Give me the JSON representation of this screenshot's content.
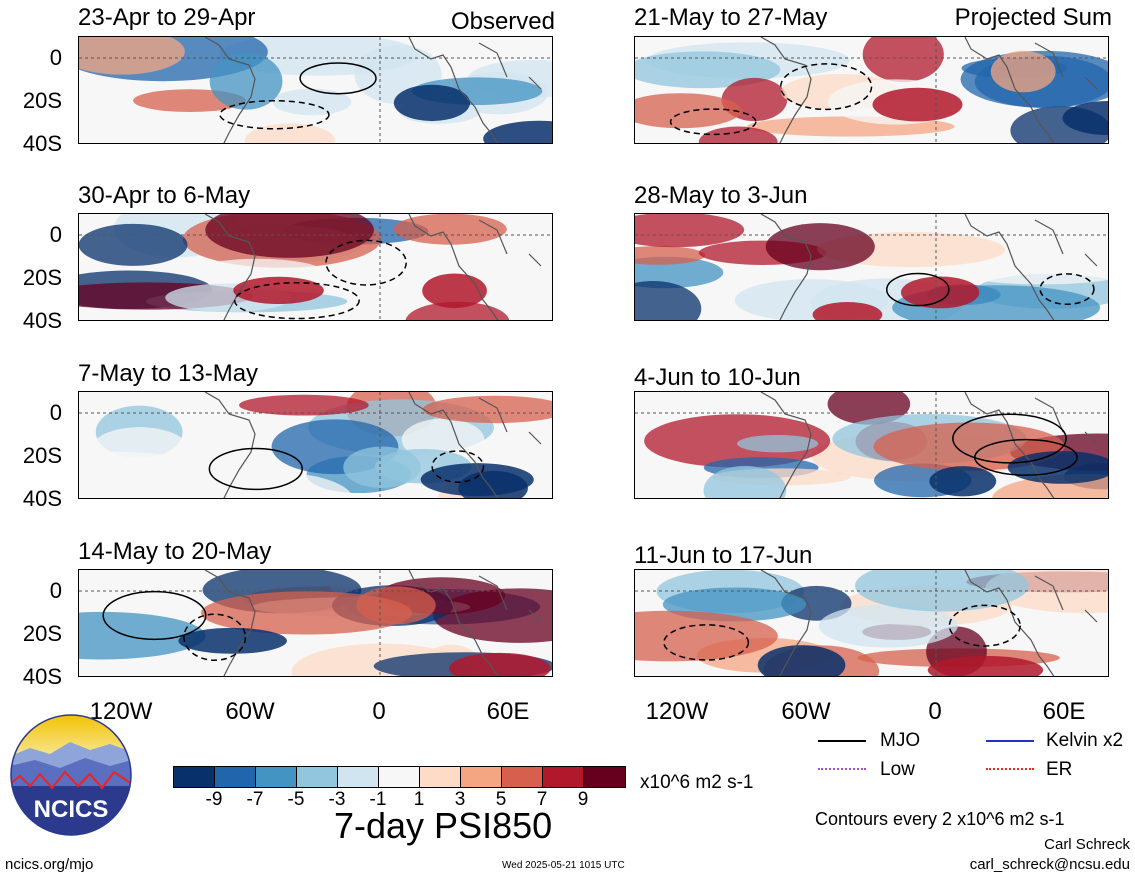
{
  "headers": {
    "observed": "Observed",
    "projected": "Projected Sum"
  },
  "panels_left": [
    {
      "title": "23-Apr to 29-Apr"
    },
    {
      "title": "30-Apr to 6-May"
    },
    {
      "title": "7-May to 13-May"
    },
    {
      "title": "14-May to 20-May"
    }
  ],
  "panels_right": [
    {
      "title": "21-May to 27-May"
    },
    {
      "title": "28-May to 3-Jun"
    },
    {
      "title": "4-Jun to 10-Jun"
    },
    {
      "title": "11-Jun to 17-Jun"
    }
  ],
  "lat_labels": [
    "0",
    "20S",
    "40S"
  ],
  "lon_labels": [
    "120W",
    "60W",
    "0",
    "60E"
  ],
  "colorbar": {
    "colors": [
      "#08306b",
      "#2166ac",
      "#4393c3",
      "#92c5de",
      "#d1e5f0",
      "#f7f7f7",
      "#fddbc7",
      "#f4a582",
      "#d6604d",
      "#b2182b",
      "#67001f"
    ],
    "labels": [
      "-9",
      "-7",
      "-5",
      "-3",
      "-1",
      "1",
      "3",
      "5",
      "7",
      "9"
    ],
    "units": "x10^6 m2 s-1",
    "title": "7-day PSI850"
  },
  "legend": {
    "items": [
      {
        "label": "MJO",
        "color": "#000000"
      },
      {
        "label": "Kelvin x2",
        "color": "#1f2fd0"
      },
      {
        "label": "Low",
        "color": "#a050e0"
      },
      {
        "label": "ER",
        "color": "#e03020"
      }
    ],
    "contours_note": "Contours every 2 x10^6 m2 s-1"
  },
  "logo": {
    "text": "NCICS"
  },
  "footer": {
    "site": "ncics.org/mjo",
    "timestamp": "Wed 2025-05-21 1015 UTC",
    "author": "Carl Schreck",
    "email": "carl_schreck@ncsu.edu"
  }
}
